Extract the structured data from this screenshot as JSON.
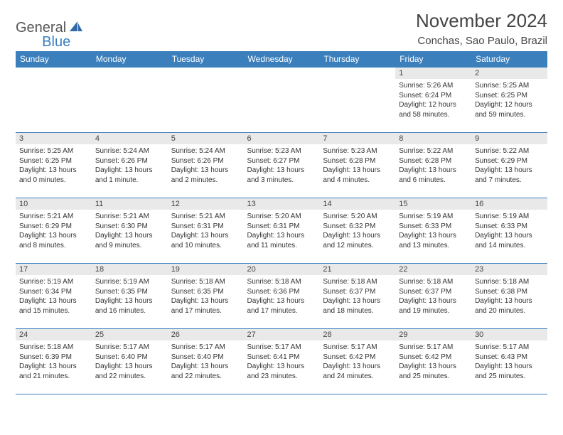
{
  "logo": {
    "text1": "General",
    "text2": "Blue"
  },
  "title": "November 2024",
  "location": "Conchas, Sao Paulo, Brazil",
  "day_header_bg": "#3b7fbd",
  "day_header_fg": "#ffffff",
  "daynum_bg": "#e9e9e9",
  "border_color": "#3b7fbd",
  "daynames": [
    "Sunday",
    "Monday",
    "Tuesday",
    "Wednesday",
    "Thursday",
    "Friday",
    "Saturday"
  ],
  "weeks": [
    [
      {
        "n": "",
        "sunrise": "",
        "sunset": "",
        "daylight": ""
      },
      {
        "n": "",
        "sunrise": "",
        "sunset": "",
        "daylight": ""
      },
      {
        "n": "",
        "sunrise": "",
        "sunset": "",
        "daylight": ""
      },
      {
        "n": "",
        "sunrise": "",
        "sunset": "",
        "daylight": ""
      },
      {
        "n": "",
        "sunrise": "",
        "sunset": "",
        "daylight": ""
      },
      {
        "n": "1",
        "sunrise": "Sunrise: 5:26 AM",
        "sunset": "Sunset: 6:24 PM",
        "daylight": "Daylight: 12 hours and 58 minutes."
      },
      {
        "n": "2",
        "sunrise": "Sunrise: 5:25 AM",
        "sunset": "Sunset: 6:25 PM",
        "daylight": "Daylight: 12 hours and 59 minutes."
      }
    ],
    [
      {
        "n": "3",
        "sunrise": "Sunrise: 5:25 AM",
        "sunset": "Sunset: 6:25 PM",
        "daylight": "Daylight: 13 hours and 0 minutes."
      },
      {
        "n": "4",
        "sunrise": "Sunrise: 5:24 AM",
        "sunset": "Sunset: 6:26 PM",
        "daylight": "Daylight: 13 hours and 1 minute."
      },
      {
        "n": "5",
        "sunrise": "Sunrise: 5:24 AM",
        "sunset": "Sunset: 6:26 PM",
        "daylight": "Daylight: 13 hours and 2 minutes."
      },
      {
        "n": "6",
        "sunrise": "Sunrise: 5:23 AM",
        "sunset": "Sunset: 6:27 PM",
        "daylight": "Daylight: 13 hours and 3 minutes."
      },
      {
        "n": "7",
        "sunrise": "Sunrise: 5:23 AM",
        "sunset": "Sunset: 6:28 PM",
        "daylight": "Daylight: 13 hours and 4 minutes."
      },
      {
        "n": "8",
        "sunrise": "Sunrise: 5:22 AM",
        "sunset": "Sunset: 6:28 PM",
        "daylight": "Daylight: 13 hours and 6 minutes."
      },
      {
        "n": "9",
        "sunrise": "Sunrise: 5:22 AM",
        "sunset": "Sunset: 6:29 PM",
        "daylight": "Daylight: 13 hours and 7 minutes."
      }
    ],
    [
      {
        "n": "10",
        "sunrise": "Sunrise: 5:21 AM",
        "sunset": "Sunset: 6:29 PM",
        "daylight": "Daylight: 13 hours and 8 minutes."
      },
      {
        "n": "11",
        "sunrise": "Sunrise: 5:21 AM",
        "sunset": "Sunset: 6:30 PM",
        "daylight": "Daylight: 13 hours and 9 minutes."
      },
      {
        "n": "12",
        "sunrise": "Sunrise: 5:21 AM",
        "sunset": "Sunset: 6:31 PM",
        "daylight": "Daylight: 13 hours and 10 minutes."
      },
      {
        "n": "13",
        "sunrise": "Sunrise: 5:20 AM",
        "sunset": "Sunset: 6:31 PM",
        "daylight": "Daylight: 13 hours and 11 minutes."
      },
      {
        "n": "14",
        "sunrise": "Sunrise: 5:20 AM",
        "sunset": "Sunset: 6:32 PM",
        "daylight": "Daylight: 13 hours and 12 minutes."
      },
      {
        "n": "15",
        "sunrise": "Sunrise: 5:19 AM",
        "sunset": "Sunset: 6:33 PM",
        "daylight": "Daylight: 13 hours and 13 minutes."
      },
      {
        "n": "16",
        "sunrise": "Sunrise: 5:19 AM",
        "sunset": "Sunset: 6:33 PM",
        "daylight": "Daylight: 13 hours and 14 minutes."
      }
    ],
    [
      {
        "n": "17",
        "sunrise": "Sunrise: 5:19 AM",
        "sunset": "Sunset: 6:34 PM",
        "daylight": "Daylight: 13 hours and 15 minutes."
      },
      {
        "n": "18",
        "sunrise": "Sunrise: 5:19 AM",
        "sunset": "Sunset: 6:35 PM",
        "daylight": "Daylight: 13 hours and 16 minutes."
      },
      {
        "n": "19",
        "sunrise": "Sunrise: 5:18 AM",
        "sunset": "Sunset: 6:35 PM",
        "daylight": "Daylight: 13 hours and 17 minutes."
      },
      {
        "n": "20",
        "sunrise": "Sunrise: 5:18 AM",
        "sunset": "Sunset: 6:36 PM",
        "daylight": "Daylight: 13 hours and 17 minutes."
      },
      {
        "n": "21",
        "sunrise": "Sunrise: 5:18 AM",
        "sunset": "Sunset: 6:37 PM",
        "daylight": "Daylight: 13 hours and 18 minutes."
      },
      {
        "n": "22",
        "sunrise": "Sunrise: 5:18 AM",
        "sunset": "Sunset: 6:37 PM",
        "daylight": "Daylight: 13 hours and 19 minutes."
      },
      {
        "n": "23",
        "sunrise": "Sunrise: 5:18 AM",
        "sunset": "Sunset: 6:38 PM",
        "daylight": "Daylight: 13 hours and 20 minutes."
      }
    ],
    [
      {
        "n": "24",
        "sunrise": "Sunrise: 5:18 AM",
        "sunset": "Sunset: 6:39 PM",
        "daylight": "Daylight: 13 hours and 21 minutes."
      },
      {
        "n": "25",
        "sunrise": "Sunrise: 5:17 AM",
        "sunset": "Sunset: 6:40 PM",
        "daylight": "Daylight: 13 hours and 22 minutes."
      },
      {
        "n": "26",
        "sunrise": "Sunrise: 5:17 AM",
        "sunset": "Sunset: 6:40 PM",
        "daylight": "Daylight: 13 hours and 22 minutes."
      },
      {
        "n": "27",
        "sunrise": "Sunrise: 5:17 AM",
        "sunset": "Sunset: 6:41 PM",
        "daylight": "Daylight: 13 hours and 23 minutes."
      },
      {
        "n": "28",
        "sunrise": "Sunrise: 5:17 AM",
        "sunset": "Sunset: 6:42 PM",
        "daylight": "Daylight: 13 hours and 24 minutes."
      },
      {
        "n": "29",
        "sunrise": "Sunrise: 5:17 AM",
        "sunset": "Sunset: 6:42 PM",
        "daylight": "Daylight: 13 hours and 25 minutes."
      },
      {
        "n": "30",
        "sunrise": "Sunrise: 5:17 AM",
        "sunset": "Sunset: 6:43 PM",
        "daylight": "Daylight: 13 hours and 25 minutes."
      }
    ]
  ]
}
